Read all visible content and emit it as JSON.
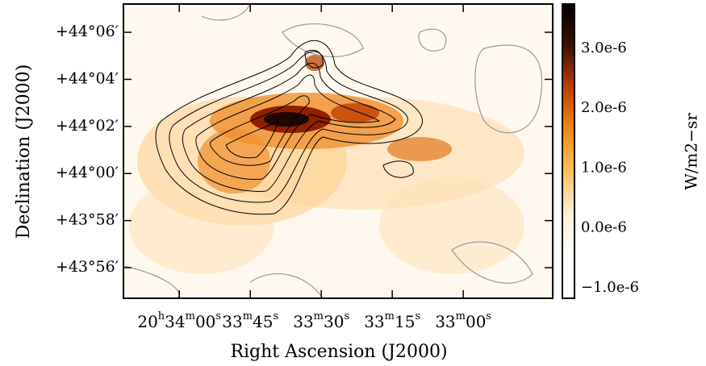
{
  "chart_data": {
    "type": "image",
    "xlabel": "Right Ascension (J2000)",
    "ylabel": "Declination (J2000)",
    "xlim": [
      2051.8,
      1961.1
    ],
    "xticks": [
      {
        "value": 2040,
        "label": "20h34m00s"
      },
      {
        "value": 2025,
        "label": "33m45s"
      },
      {
        "value": 2010,
        "label": "33m30s"
      },
      {
        "value": 1995,
        "label": "33m15s"
      },
      {
        "value": 1980,
        "label": "33m00s"
      }
    ],
    "ylim": [
      2634.7,
      2647.2
    ],
    "yticks": [
      {
        "value": 2646,
        "label": "+44°06′"
      },
      {
        "value": 2644,
        "label": "+44°04′"
      },
      {
        "value": 2642,
        "label": "+44°02′"
      },
      {
        "value": 2640,
        "label": "+44°00′"
      },
      {
        "value": 2638,
        "label": "+43°58′"
      },
      {
        "value": 2636,
        "label": "+43°56′"
      }
    ],
    "colorbar": {
      "label": "W/m2−sr",
      "clim": [
        -1.175e-06,
        3.74e-06
      ],
      "ticks": [
        {
          "value": 3e-06,
          "label": "3.0e-6"
        },
        {
          "value": 2e-06,
          "label": "2.0e-6"
        },
        {
          "value": 1e-06,
          "label": "1.0e-6"
        },
        {
          "value": 0,
          "label": "0.0e-6"
        },
        {
          "value": -1e-06,
          "label": "−1.0e-6"
        }
      ],
      "cmap": [
        "#ffffff",
        "#ffffff",
        "#fff0d8",
        "#ffc060",
        "#f08a10",
        "#c04000",
        "#401000",
        "#000000"
      ]
    }
  }
}
